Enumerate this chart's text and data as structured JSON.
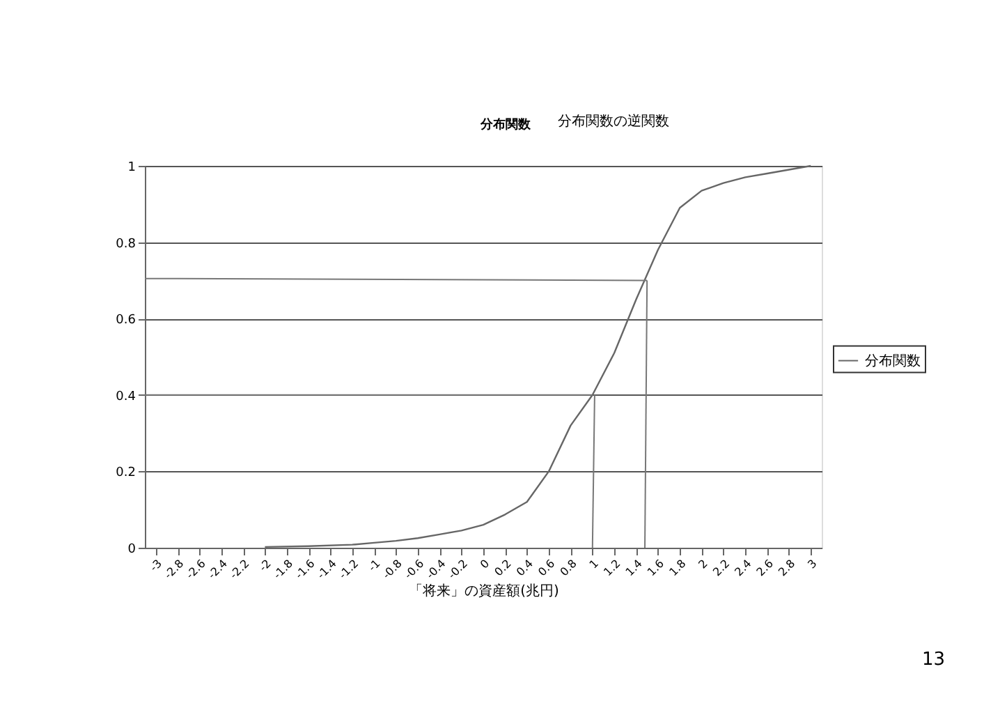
{
  "chart_data": {
    "type": "line",
    "title": "分布関数",
    "subtitle": "分布関数の逆関数",
    "xlabel": "「将来」の資産額(兆円)",
    "xlim": [
      -3.1,
      3.1
    ],
    "xticks": [
      -3,
      -2.8,
      -2.6,
      -2.4,
      -2.2,
      -2,
      -1.8,
      -1.6,
      -1.4,
      -1.2,
      -1,
      -0.8,
      -0.6,
      -0.4,
      -0.2,
      0,
      0.2,
      0.4,
      0.6,
      0.8,
      1,
      1.2,
      1.4,
      1.6,
      1.8,
      2,
      2.2,
      2.4,
      2.6,
      2.8,
      3
    ],
    "ylim": [
      0,
      1
    ],
    "yticks": [
      0,
      0.2,
      0.4,
      0.6,
      0.8,
      1
    ],
    "grid": "y",
    "legend": "right",
    "line_style": "solid",
    "marker": "none",
    "series": [
      {
        "name": "分布関数",
        "color": "#666666",
        "x": [
          -2,
          -1.6,
          -1.2,
          -1,
          -0.8,
          -0.6,
          -0.4,
          -0.2,
          0,
          0.2,
          0.4,
          0.6,
          0.8,
          1,
          1.2,
          1.4,
          1.6,
          1.8,
          2,
          2.2,
          2.4,
          2.6,
          2.8,
          3
        ],
        "values": [
          0.002,
          0.004,
          0.008,
          0.013,
          0.018,
          0.025,
          0.035,
          0.045,
          0.06,
          0.087,
          0.12,
          0.2,
          0.32,
          0.4,
          0.51,
          0.65,
          0.78,
          0.89,
          0.935,
          0.955,
          0.97,
          0.98,
          0.99,
          1
        ]
      },
      {
        "type": "line",
        "color": "#777777",
        "x": [
          -3.1,
          1.5
        ],
        "values": [
          0.705,
          0.7
        ]
      },
      {
        "type": "line",
        "color": "#777777",
        "x": [
          1.5,
          1.48
        ],
        "values": [
          0.7,
          0
        ]
      },
      {
        "type": "line",
        "color": "#777777",
        "x": [
          -3.1,
          1
        ],
        "values": [
          0.4,
          0.4
        ]
      },
      {
        "type": "line",
        "color": "#777777",
        "x": [
          1.02,
          1
        ],
        "values": [
          0.4,
          0
        ]
      }
    ],
    "annotations": [
      "13"
    ]
  }
}
